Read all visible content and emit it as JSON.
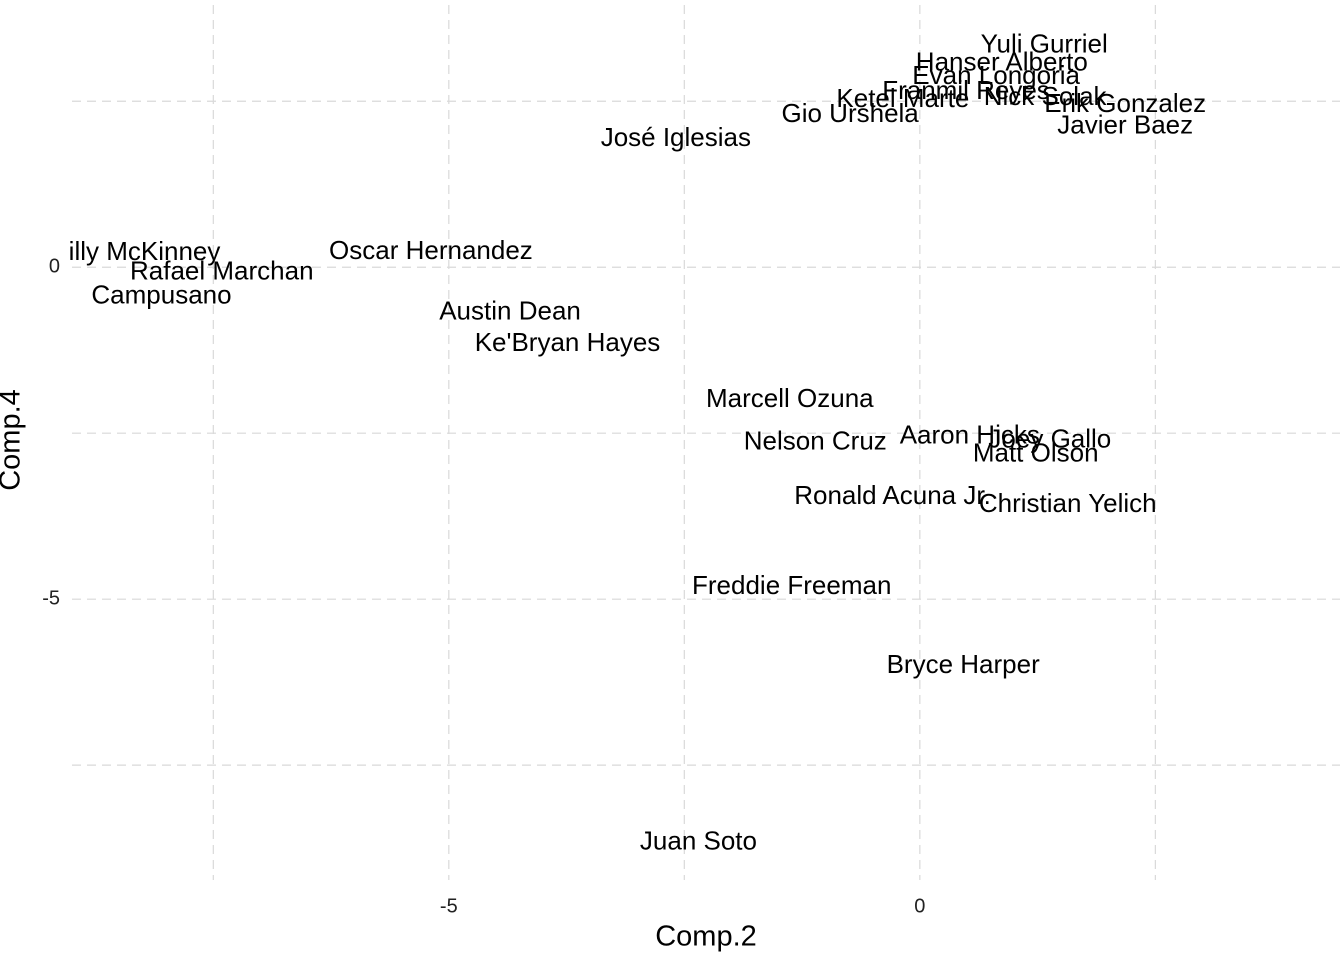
{
  "chart_data": {
    "type": "text-scatter",
    "x_label": "Comp.2",
    "y_label": "Comp.4",
    "xlim": [
      -9.0,
      4.46
    ],
    "ylim": [
      -9.23,
      3.95
    ],
    "xticks": [
      -5,
      0
    ],
    "yticks": [
      0,
      -5
    ],
    "x_minor": [
      -7.5,
      -2.5,
      2.5
    ],
    "y_minor": [
      2.5,
      -2.5,
      -7.5
    ],
    "grid": true,
    "color": "#000000",
    "points": [
      {
        "label": "Yuli Gurriel",
        "x": 1.32,
        "y": 3.34
      },
      {
        "label": "Hanser Alberto",
        "x": 0.87,
        "y": 3.07
      },
      {
        "label": "Evan Longoria",
        "x": 0.81,
        "y": 2.86
      },
      {
        "label": "Franmil Reyes",
        "x": 0.49,
        "y": 2.64
      },
      {
        "label": "Ketel Marte",
        "x": -0.18,
        "y": 2.52
      },
      {
        "label": "Nick Solak",
        "x": 1.33,
        "y": 2.55
      },
      {
        "label": "Erik Gonzalez",
        "x": 2.18,
        "y": 2.44
      },
      {
        "label": "Gio Urshela",
        "x": -0.74,
        "y": 2.29
      },
      {
        "label": "Javier Baez",
        "x": 2.18,
        "y": 2.12
      },
      {
        "label": "José Iglesias",
        "x": -2.59,
        "y": 1.93
      },
      {
        "label": "illy McKinney",
        "x": -8.23,
        "y": 0.21
      },
      {
        "label": "Rafael Marchan",
        "x": -7.41,
        "y": -0.08
      },
      {
        "label": "Campusano",
        "x": -8.05,
        "y": -0.44
      },
      {
        "label": "Oscar Hernandez",
        "x": -5.19,
        "y": 0.23
      },
      {
        "label": "Austin Dean",
        "x": -4.35,
        "y": -0.68
      },
      {
        "label": "Ke'Bryan Hayes",
        "x": -3.74,
        "y": -1.16
      },
      {
        "label": "Marcell Ozuna",
        "x": -1.38,
        "y": -2.0
      },
      {
        "label": "Nelson Cruz",
        "x": -1.11,
        "y": -2.64
      },
      {
        "label": "Aaron Hicks",
        "x": 0.53,
        "y": -2.55
      },
      {
        "label": "Joey Gallo",
        "x": 1.38,
        "y": -2.61
      },
      {
        "label": "Matt Olson",
        "x": 1.23,
        "y": -2.82
      },
      {
        "label": "Ronald Acuna Jr.",
        "x": -0.29,
        "y": -3.46
      },
      {
        "label": "Christian Yelich",
        "x": 1.57,
        "y": -3.58
      },
      {
        "label": "Freddie Freeman",
        "x": -1.36,
        "y": -4.82
      },
      {
        "label": "Bryce Harper",
        "x": 0.46,
        "y": -6.01
      },
      {
        "label": "Juan Soto",
        "x": -2.35,
        "y": -8.67
      }
    ]
  }
}
